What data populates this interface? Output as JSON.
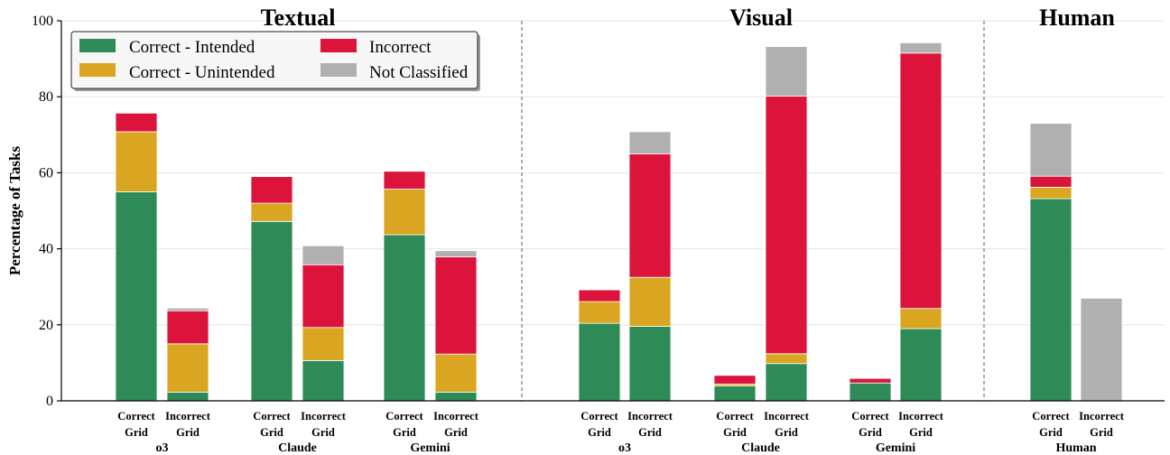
{
  "chart_data": {
    "type": "bar",
    "stacked": true,
    "ylabel": "Percentage of Tasks",
    "ylim": [
      0,
      100
    ],
    "yticks": [
      0,
      20,
      40,
      60,
      80,
      100
    ],
    "grid": "horizontal",
    "legend_position": "top-left",
    "colors": {
      "correct_intended": "#2e8b57",
      "correct_unintended": "#daa520",
      "incorrect": "#dc143c",
      "not_classified": "#b0b0b0"
    },
    "series": [
      {
        "key": "correct_intended",
        "name": "Correct - Intended"
      },
      {
        "key": "correct_unintended",
        "name": "Correct - Unintended"
      },
      {
        "key": "incorrect",
        "name": "Incorrect"
      },
      {
        "key": "not_classified",
        "name": "Not Classified"
      }
    ],
    "sections": [
      {
        "title": "Textual",
        "groups": [
          {
            "model": "o3",
            "bars": [
              {
                "label": [
                  "Correct",
                  "Grid"
                ],
                "values": {
                  "correct_intended": 55.0,
                  "correct_unintended": 15.8,
                  "incorrect": 4.9,
                  "not_classified": 0
                }
              },
              {
                "label": [
                  "Incorrect",
                  "Grid"
                ],
                "values": {
                  "correct_intended": 2.3,
                  "correct_unintended": 12.7,
                  "incorrect": 8.7,
                  "not_classified": 0.7
                }
              }
            ]
          },
          {
            "model": "Claude",
            "bars": [
              {
                "label": [
                  "Correct",
                  "Grid"
                ],
                "values": {
                  "correct_intended": 47.2,
                  "correct_unintended": 4.8,
                  "incorrect": 7.0,
                  "not_classified": 0
                }
              },
              {
                "label": [
                  "Incorrect",
                  "Grid"
                ],
                "values": {
                  "correct_intended": 10.6,
                  "correct_unintended": 8.7,
                  "incorrect": 16.5,
                  "not_classified": 5.0
                }
              }
            ]
          },
          {
            "model": "Gemini",
            "bars": [
              {
                "label": [
                  "Correct",
                  "Grid"
                ],
                "values": {
                  "correct_intended": 43.7,
                  "correct_unintended": 12.0,
                  "incorrect": 4.7,
                  "not_classified": 0
                }
              },
              {
                "label": [
                  "Incorrect",
                  "Grid"
                ],
                "values": {
                  "correct_intended": 2.3,
                  "correct_unintended": 10.0,
                  "incorrect": 25.6,
                  "not_classified": 1.6
                }
              }
            ]
          }
        ]
      },
      {
        "title": "Visual",
        "groups": [
          {
            "model": "o3",
            "bars": [
              {
                "label": [
                  "Correct",
                  "Grid"
                ],
                "values": {
                  "correct_intended": 20.4,
                  "correct_unintended": 5.7,
                  "incorrect": 3.1,
                  "not_classified": 0
                }
              },
              {
                "label": [
                  "Incorrect",
                  "Grid"
                ],
                "values": {
                  "correct_intended": 19.6,
                  "correct_unintended": 12.9,
                  "incorrect": 32.5,
                  "not_classified": 5.8
                }
              }
            ]
          },
          {
            "model": "Claude",
            "bars": [
              {
                "label": [
                  "Correct",
                  "Grid"
                ],
                "values": {
                  "correct_intended": 3.9,
                  "correct_unintended": 0.5,
                  "incorrect": 2.3,
                  "not_classified": 0
                }
              },
              {
                "label": [
                  "Incorrect",
                  "Grid"
                ],
                "values": {
                  "correct_intended": 9.8,
                  "correct_unintended": 2.6,
                  "incorrect": 67.8,
                  "not_classified": 13.0
                }
              }
            ]
          },
          {
            "model": "Gemini",
            "bars": [
              {
                "label": [
                  "Correct",
                  "Grid"
                ],
                "values": {
                  "correct_intended": 4.7,
                  "correct_unintended": 0,
                  "incorrect": 1.2,
                  "not_classified": 0
                }
              },
              {
                "label": [
                  "Incorrect",
                  "Grid"
                ],
                "values": {
                  "correct_intended": 19.0,
                  "correct_unintended": 5.3,
                  "incorrect": 67.2,
                  "not_classified": 2.7
                }
              }
            ]
          }
        ]
      },
      {
        "title": "Human",
        "groups": [
          {
            "model": "Human",
            "bars": [
              {
                "label": [
                  "Correct",
                  "Grid"
                ],
                "values": {
                  "correct_intended": 53.2,
                  "correct_unintended": 3.0,
                  "incorrect": 2.9,
                  "not_classified": 13.9
                }
              },
              {
                "label": [
                  "Incorrect",
                  "Grid"
                ],
                "values": {
                  "correct_intended": 0,
                  "correct_unintended": 0,
                  "incorrect": 0,
                  "not_classified": 27.0
                }
              }
            ]
          }
        ]
      }
    ]
  }
}
